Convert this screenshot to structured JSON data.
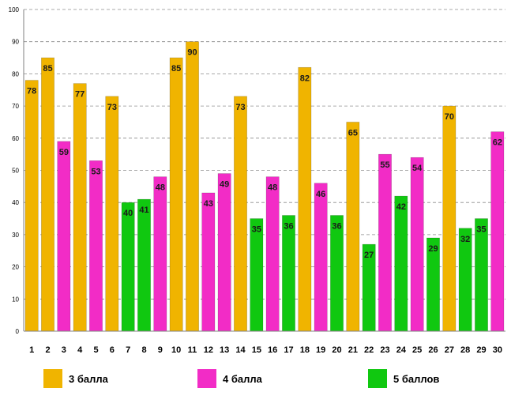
{
  "chart_data": {
    "type": "bar",
    "title": "",
    "xlabel": "",
    "ylabel": "",
    "ylim": [
      0,
      100
    ],
    "ytick_step": 10,
    "grid": true,
    "legend_position": "bottom",
    "categories": [
      "1",
      "2",
      "3",
      "4",
      "5",
      "6",
      "7",
      "8",
      "9",
      "10",
      "11",
      "12",
      "13",
      "14",
      "15",
      "16",
      "17",
      "18",
      "19",
      "20",
      "21",
      "22",
      "23",
      "24",
      "25",
      "26",
      "27",
      "28",
      "29",
      "30"
    ],
    "values": [
      78,
      85,
      59,
      77,
      53,
      73,
      40,
      41,
      48,
      85,
      90,
      43,
      49,
      73,
      35,
      48,
      36,
      82,
      46,
      36,
      65,
      27,
      55,
      42,
      54,
      29,
      70,
      32,
      35,
      62
    ],
    "groups": [
      "3",
      "3",
      "4",
      "3",
      "4",
      "3",
      "5",
      "5",
      "4",
      "3",
      "3",
      "4",
      "4",
      "3",
      "5",
      "4",
      "5",
      "3",
      "4",
      "5",
      "3",
      "5",
      "4",
      "5",
      "4",
      "5",
      "3",
      "5",
      "5",
      "4"
    ],
    "legend": [
      {
        "key": "3",
        "label": "3 балла",
        "color": "#F0B400"
      },
      {
        "key": "4",
        "label": "4 балла",
        "color": "#F22CC6"
      },
      {
        "key": "5",
        "label": "5 баллов",
        "color": "#10C810"
      }
    ]
  }
}
